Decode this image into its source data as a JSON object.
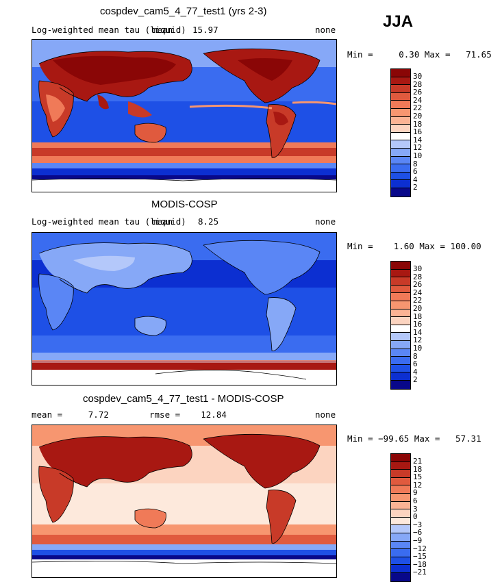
{
  "season": "JJA",
  "colors": {
    "scale13": [
      "#08088a",
      "#0c2fd1",
      "#1e50e6",
      "#3a6cf0",
      "#5a86f5",
      "#86a8f7",
      "#b4c8fa",
      "#ffffff",
      "#fcd4c0",
      "#fbb394",
      "#f79670",
      "#f07a58",
      "#e05a3e",
      "#c83a28",
      "#a81812",
      "#8a0606"
    ],
    "diff": [
      "#08088a",
      "#0c2fd1",
      "#1e50e6",
      "#3a6cf0",
      "#5a86f5",
      "#86a8f7",
      "#b4c8fa",
      "#fde9dc",
      "#fcd4c0",
      "#fbb394",
      "#f79670",
      "#f07a58",
      "#e05a3e",
      "#c83a28",
      "#a81812",
      "#8a0606"
    ]
  },
  "panels": [
    {
      "title": "cospdev_cam5_4_77_test1 (yrs 2-3)",
      "left_text": "Log-weighted mean tau (liquid)",
      "mean_label": "mean",
      "mean_value": "15.97",
      "right_text": "none",
      "minmax": "Min =     0.30 Max =   71.65",
      "colorbar_labels": [
        "30",
        "28",
        "26",
        "24",
        "22",
        "20",
        "18",
        "16",
        "14",
        "12",
        "10",
        "8",
        "6",
        "4",
        "2"
      ],
      "theme": "model"
    },
    {
      "title": "MODIS-COSP",
      "left_text": "Log-weighted mean tau (liquid)",
      "mean_label": "mean",
      "mean_value": "8.25",
      "right_text": "none",
      "minmax": "Min =    1.60 Max = 100.00",
      "colorbar_labels": [
        "30",
        "28",
        "26",
        "24",
        "22",
        "20",
        "18",
        "16",
        "14",
        "12",
        "10",
        "8",
        "6",
        "4",
        "2"
      ],
      "theme": "obs"
    },
    {
      "title": "cospdev_cam5_4_77_test1 - MODIS-COSP",
      "left_text": "mean =     7.72",
      "rmse_text": "rmse =    12.84",
      "right_text": "none",
      "minmax": "Min = −99.65 Max =   57.31",
      "colorbar_labels": [
        "21",
        "18",
        "15",
        "12",
        "9",
        "6",
        "3",
        "0",
        "−3",
        "−6",
        "−9",
        "−12",
        "−15",
        "−18",
        "−21"
      ],
      "theme": "diff"
    }
  ]
}
